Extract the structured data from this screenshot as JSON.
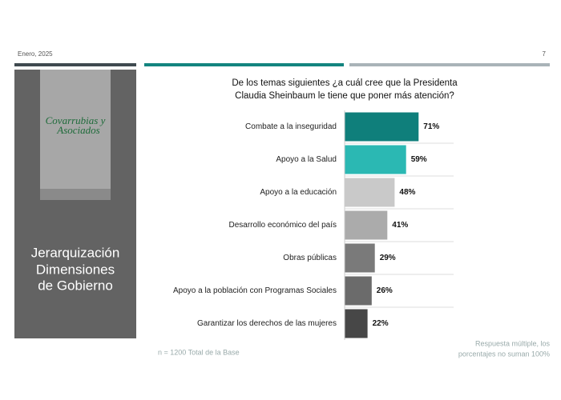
{
  "header": {
    "date": "Enero, 2025",
    "page": "7"
  },
  "sidebar": {
    "logo_lines": [
      "Covarrubias y",
      "Asociados"
    ],
    "title_lines": [
      "Jerarquización",
      "Dimensiones",
      "de Gobierno"
    ]
  },
  "chart_data": {
    "type": "hbar",
    "title": "De los temas siguientes ¿a cuál cree que la Presidenta Claudia Sheinbaum le tiene que poner más atención?",
    "categories": [
      "Combate a la inseguridad",
      "Apoyo a la Salud",
      "Apoyo a la educación",
      "Desarrollo económico del país",
      "Obras públicas",
      "Apoyo a la población con Programas Sociales",
      "Garantizar los derechos de las mujeres"
    ],
    "values": [
      71,
      59,
      48,
      41,
      29,
      26,
      22
    ],
    "value_labels": [
      "71%",
      "59%",
      "48%",
      "41%",
      "29%",
      "26%",
      "22%"
    ],
    "colors": [
      "#0f7f7b",
      "#2bb8b3",
      "#c9c9c9",
      "#ababab",
      "#7a7a7a",
      "#6b6b6b",
      "#474747"
    ]
  },
  "footnotes": {
    "base": "n = 1200 Total de la Base",
    "note_lines": [
      "Respuesta múltiple, los",
      "porcentajes no suman 100%"
    ]
  }
}
